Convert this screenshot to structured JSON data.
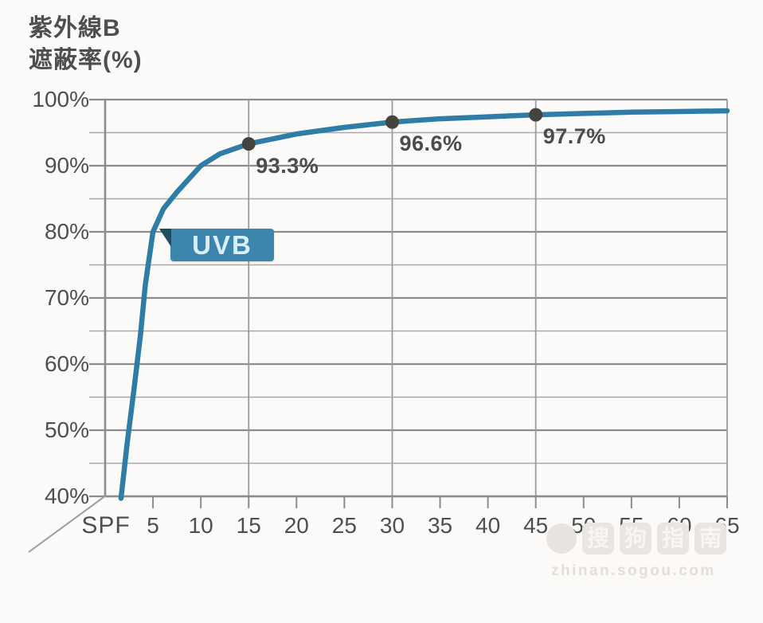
{
  "title": {
    "line1": "紫外線B",
    "line2": "遮蔽率(%)"
  },
  "axis": {
    "x_name": "SPF"
  },
  "uvb_label": "UVB",
  "watermark": {
    "line1": "搜狗指南",
    "line2": "zhinan.sogou.com"
  },
  "colors": {
    "curve": "#2e7da6",
    "badge": "#3c86ad",
    "badge_fold": "#1d4f63",
    "dot": "#44443f",
    "grid_major": "#8c8c8c",
    "grid_minor": "#a9a9a9",
    "grid_vertical": "#9c9c9c",
    "text": "#4f4f4f",
    "background": "#fbfaf8"
  },
  "chart_data": {
    "type": "line",
    "title": "紫外線B 遮蔽率(%)",
    "xlabel": "SPF",
    "ylabel": "遮蔽率(%)",
    "xlim": [
      0,
      65
    ],
    "ylim": [
      40,
      100
    ],
    "x_ticks": [
      5,
      10,
      15,
      20,
      25,
      30,
      35,
      40,
      45,
      50,
      55,
      60,
      65
    ],
    "y_major_ticks": [
      100,
      90,
      80,
      70,
      60,
      50,
      40
    ],
    "y_minor_ticks": [
      95,
      85,
      75,
      65,
      55,
      45
    ],
    "y_tick_suffix": "%",
    "grid": "on",
    "grid_vertical_x": [
      15,
      30,
      45
    ],
    "legend_position": "none",
    "series": [
      {
        "name": "UVB",
        "points": [
          [
            1.66,
            39.7
          ],
          [
            2.3,
            48
          ],
          [
            3.0,
            56
          ],
          [
            3.7,
            64.5
          ],
          [
            4.2,
            72
          ],
          [
            5,
            80
          ],
          [
            6.1,
            83.5
          ],
          [
            7.5,
            86
          ],
          [
            10,
            90
          ],
          [
            12,
            91.8
          ],
          [
            15,
            93.3
          ],
          [
            20,
            94.8
          ],
          [
            25,
            95.8
          ],
          [
            30,
            96.6
          ],
          [
            35,
            97.1
          ],
          [
            40,
            97.4
          ],
          [
            45,
            97.7
          ],
          [
            50,
            97.9
          ],
          [
            55,
            98.1
          ],
          [
            60,
            98.2
          ],
          [
            65,
            98.3
          ]
        ]
      }
    ],
    "marked_points": [
      {
        "x": 15,
        "y": 93.3,
        "label": "93.3%"
      },
      {
        "x": 30,
        "y": 96.6,
        "label": "96.6%"
      },
      {
        "x": 45,
        "y": 97.7,
        "label": "97.7%"
      }
    ],
    "annotations": [
      {
        "text": "UVB",
        "x": 8,
        "y": 78,
        "style": "badge"
      }
    ]
  }
}
